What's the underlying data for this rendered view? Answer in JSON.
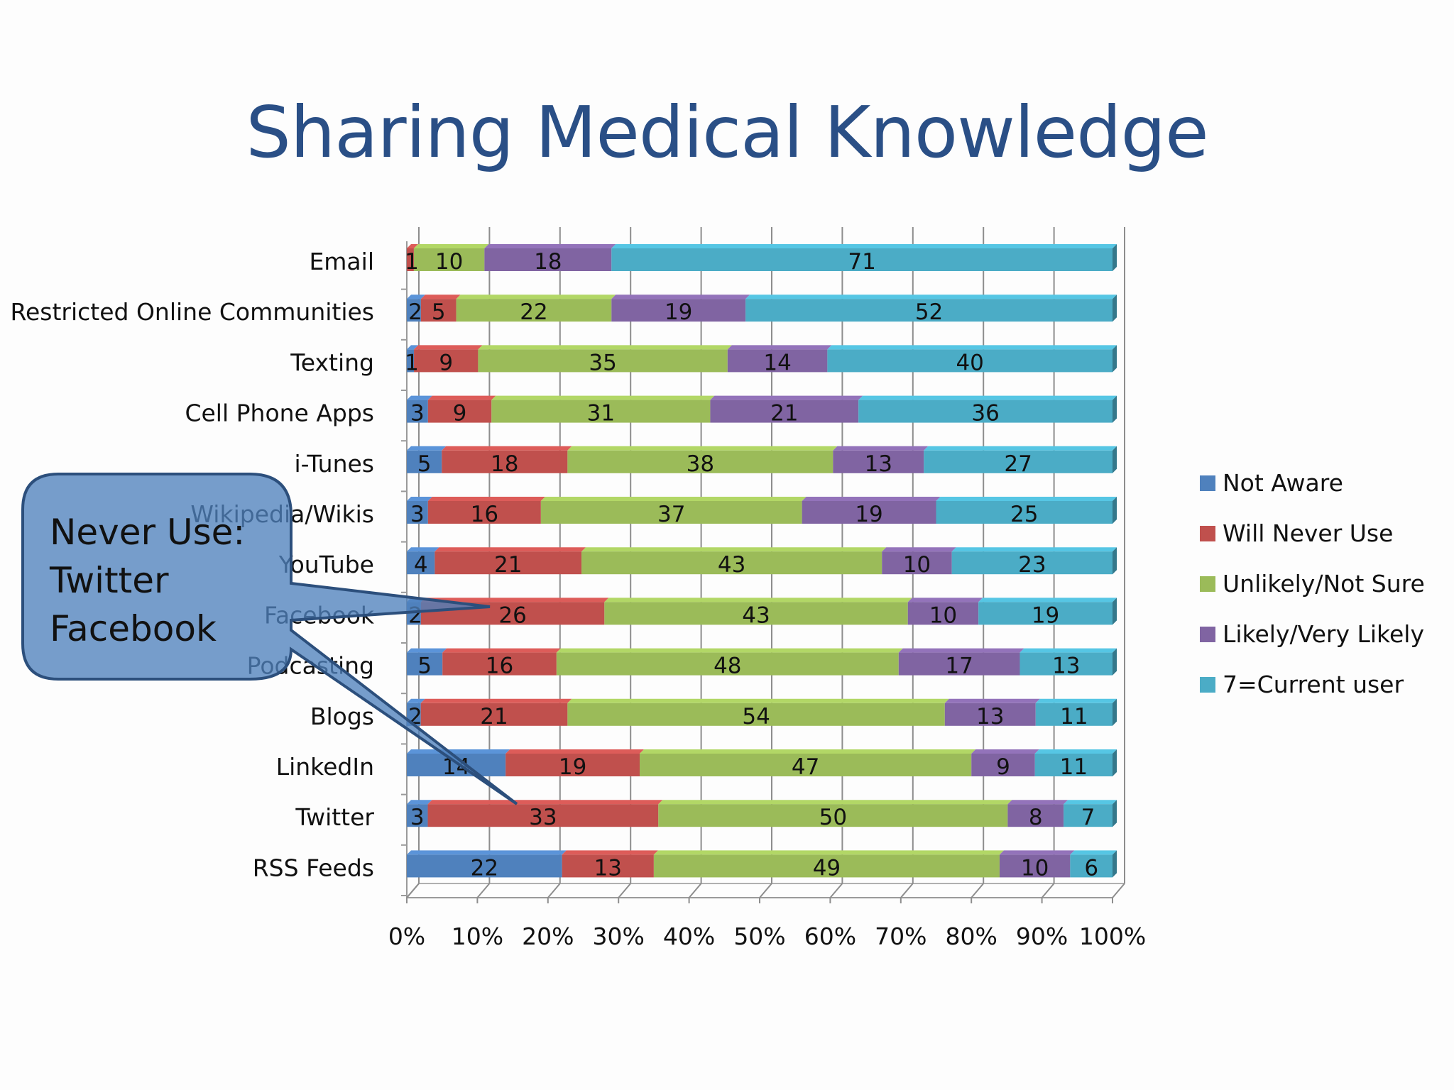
{
  "title": "Sharing Medical Knowledge",
  "callout": {
    "lines": [
      "Never Use:",
      "Twitter",
      "Facebook"
    ]
  },
  "chart_data": {
    "type": "bar",
    "orientation": "horizontal",
    "stacked": "percent",
    "categories": [
      "Email",
      "Restricted Online Communities",
      "Texting",
      "Cell Phone Apps",
      "i-Tunes",
      "Wikipedia/Wikis",
      "YouTube",
      "Facebook",
      "Podcasting",
      "Blogs",
      "LinkedIn",
      "Twitter",
      "RSS Feeds"
    ],
    "series": [
      {
        "name": "Not Aware",
        "color": "#4f81bd",
        "values": [
          0,
          2,
          1,
          3,
          5,
          3,
          4,
          2,
          5,
          2,
          14,
          3,
          22
        ]
      },
      {
        "name": "Will Never Use",
        "color": "#c0504d",
        "values": [
          1,
          5,
          9,
          9,
          18,
          16,
          21,
          26,
          16,
          21,
          19,
          33,
          13
        ]
      },
      {
        "name": "Unlikely/Not Sure",
        "color": "#9bbb59",
        "values": [
          10,
          22,
          35,
          31,
          38,
          37,
          43,
          43,
          48,
          54,
          47,
          50,
          49
        ]
      },
      {
        "name": "Likely/Very Likely",
        "color": "#8064a2",
        "values": [
          18,
          19,
          14,
          21,
          13,
          19,
          10,
          10,
          17,
          13,
          9,
          8,
          10
        ]
      },
      {
        "name": "7=Current user",
        "color": "#4bacc6",
        "values": [
          71,
          52,
          40,
          36,
          27,
          25,
          23,
          19,
          13,
          11,
          11,
          7,
          6
        ]
      }
    ],
    "x_ticks": [
      "0%",
      "10%",
      "20%",
      "30%",
      "40%",
      "50%",
      "60%",
      "70%",
      "80%",
      "90%",
      "100%"
    ],
    "xlim": [
      0,
      100
    ],
    "legend_position": "right",
    "grid": true
  }
}
